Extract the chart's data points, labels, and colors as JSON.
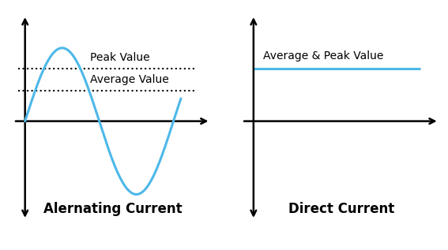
{
  "bg_color": "#ffffff",
  "line_color": "#4db8e8",
  "axis_color": "#000000",
  "text_color": "#000000",
  "ac_label": "Alernating Current",
  "dc_label": "Direct Current",
  "peak_label": "Peak Value",
  "avg_label": "Average Value",
  "avg_peak_label": "Average & Peak Value",
  "label_fontsize": 12,
  "annotation_fontsize": 10,
  "peak_value": 0.72,
  "avg_value": 0.42,
  "dc_value": 0.72,
  "dotted_color": "#000000",
  "dotted_lw": 1.5
}
